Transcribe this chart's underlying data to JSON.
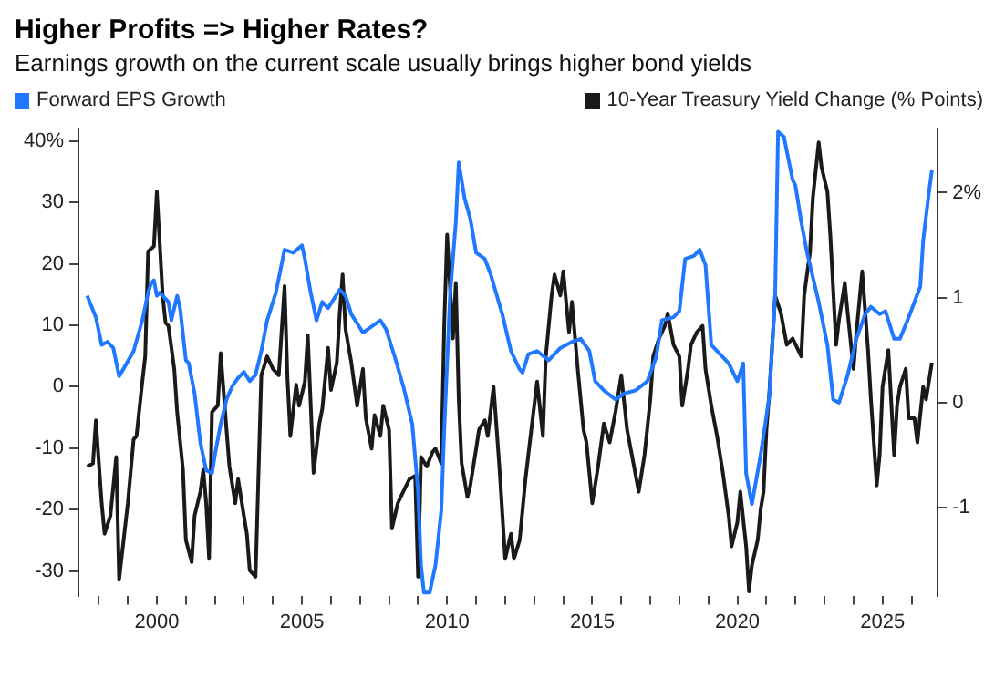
{
  "chart_data": {
    "type": "line",
    "title": "Higher Profits => Higher Rates?",
    "subtitle": "Earnings growth on the current scale usually brings higher bond yields",
    "legend": "top",
    "line_style": "solid",
    "marker": "none",
    "xlim": [
      1997.3,
      2026.9
    ],
    "xticks": [
      {
        "value": 1998,
        "label": null
      },
      {
        "value": 1999,
        "label": null
      },
      2000,
      {
        "value": 2001,
        "label": null
      },
      {
        "value": 2002,
        "label": null
      },
      {
        "value": 2003,
        "label": null
      },
      {
        "value": 2004,
        "label": null
      },
      2005,
      {
        "value": 2006,
        "label": null
      },
      {
        "value": 2007,
        "label": null
      },
      {
        "value": 2008,
        "label": null
      },
      {
        "value": 2009,
        "label": null
      },
      2010,
      {
        "value": 2011,
        "label": null
      },
      {
        "value": 2012,
        "label": null
      },
      {
        "value": 2013,
        "label": null
      },
      {
        "value": 2014,
        "label": null
      },
      2015,
      {
        "value": 2016,
        "label": null
      },
      {
        "value": 2017,
        "label": null
      },
      {
        "value": 2018,
        "label": null
      },
      {
        "value": 2019,
        "label": null
      },
      2020,
      {
        "value": 2021,
        "label": null
      },
      {
        "value": 2022,
        "label": null
      },
      {
        "value": 2023,
        "label": null
      },
      {
        "value": 2024,
        "label": null
      },
      2025,
      {
        "value": 2026,
        "label": null
      }
    ],
    "ylim": [
      -34,
      42
    ],
    "yticks": [
      -30,
      -20,
      -10,
      0,
      10,
      20,
      30,
      {
        "value": 40,
        "label": "40%"
      }
    ],
    "y2lim": [
      -1.84,
      2.61
    ],
    "y2ticks": [
      -1,
      0,
      1,
      {
        "value": 2,
        "label": "2%"
      }
    ],
    "series": [
      {
        "name": "Forward EPS Growth",
        "color": "#1f78ff",
        "x": [
          1997.6,
          1997.9,
          1998.1,
          1998.3,
          1998.5,
          1998.7,
          1998.9,
          1999.2,
          1999.5,
          1999.7,
          1999.8,
          1999.9,
          2000.0,
          2000.1,
          2000.4,
          2000.5,
          2000.7,
          2000.8,
          2001.0,
          2001.1,
          2001.3,
          2001.5,
          2001.7,
          2001.9,
          2002.0,
          2002.2,
          2002.4,
          2002.6,
          2002.8,
          2003.0,
          2003.2,
          2003.4,
          2003.6,
          2003.8,
          2004.1,
          2004.4,
          2004.7,
          2005.0,
          2005.1,
          2005.3,
          2005.5,
          2005.7,
          2005.9,
          2006.1,
          2006.3,
          2006.5,
          2006.7,
          2007.1,
          2007.4,
          2007.7,
          2007.9,
          2008.2,
          2008.5,
          2008.8,
          2009.0,
          2009.1,
          2009.2,
          2009.4,
          2009.6,
          2009.8,
          2009.9,
          2010.1,
          2010.3,
          2010.4,
          2010.6,
          2010.8,
          2011.0,
          2011.3,
          2011.5,
          2011.9,
          2012.2,
          2012.5,
          2012.6,
          2012.8,
          2013.1,
          2013.5,
          2013.9,
          2014.3,
          2014.6,
          2014.9,
          2015.1,
          2015.4,
          2015.8,
          2016.1,
          2016.5,
          2016.9,
          2017.2,
          2017.4,
          2017.8,
          2018.0,
          2018.2,
          2018.5,
          2018.7,
          2018.9,
          2019.1,
          2019.7,
          2020.0,
          2020.2,
          2020.3,
          2020.5,
          2020.8,
          2021.1,
          2021.3,
          2021.4,
          2021.6,
          2021.9,
          2022.0,
          2022.2,
          2022.4,
          2022.8,
          2023.1,
          2023.3,
          2023.5,
          2023.8,
          2024.1,
          2024.4,
          2024.6,
          2024.9,
          2025.1,
          2025.4,
          2025.6,
          2025.9,
          2026.3,
          2026.4,
          2026.6,
          2026.7
        ],
        "values": [
          14.8,
          11.3,
          6.8,
          7.3,
          6.3,
          1.7,
          3.3,
          5.8,
          10.8,
          15.3,
          16.8,
          17.3,
          14.8,
          15.3,
          13.8,
          10.8,
          14.8,
          12.8,
          4.3,
          3.8,
          -1.1,
          -9.1,
          -13.6,
          -14.1,
          -11.1,
          -6.1,
          -2.1,
          0.1,
          1.4,
          2.4,
          0.9,
          1.9,
          5.8,
          10.8,
          15.3,
          22.3,
          21.8,
          23.0,
          20.8,
          15.3,
          10.8,
          13.8,
          12.8,
          14.3,
          15.8,
          14.8,
          11.8,
          8.8,
          9.8,
          10.8,
          9.3,
          4.8,
          -0.1,
          -6.1,
          -17.1,
          -29.0,
          -33.5,
          -33.5,
          -29.0,
          -20.1,
          -7.1,
          14.8,
          26.8,
          36.5,
          30.7,
          27.3,
          21.8,
          20.8,
          18.3,
          11.8,
          5.8,
          2.8,
          2.3,
          5.3,
          5.8,
          4.3,
          6.3,
          7.3,
          7.8,
          5.8,
          0.9,
          -0.6,
          -2.1,
          -1.1,
          -0.6,
          0.9,
          4.8,
          10.8,
          11.3,
          12.3,
          20.8,
          21.3,
          22.3,
          19.8,
          6.8,
          3.8,
          0.9,
          3.8,
          -14.1,
          -19.1,
          -11.1,
          -1.6,
          14.8,
          41.5,
          40.7,
          33.7,
          32.7,
          26.8,
          21.8,
          13.8,
          6.8,
          -2.1,
          -2.6,
          1.9,
          7.8,
          11.8,
          13.0,
          11.8,
          12.3,
          7.8,
          7.8,
          11.3,
          16.3,
          23.8,
          31.7,
          35.2
        ]
      },
      {
        "name": "10-Year Treasury Yield Change (% Points)",
        "color": "#1a1a1a",
        "axis": "y2",
        "x": [
          1997.6,
          1997.8,
          1997.9,
          1998.1,
          1998.2,
          1998.4,
          1998.6,
          1998.7,
          1998.9,
          1999.0,
          1999.2,
          1999.3,
          1999.5,
          1999.6,
          1999.7,
          1999.9,
          2000.0,
          2000.2,
          2000.3,
          2000.4,
          2000.6,
          2000.7,
          2000.9,
          2001.0,
          2001.2,
          2001.3,
          2001.5,
          2001.6,
          2001.7,
          2001.8,
          2001.9,
          2002.1,
          2002.2,
          2002.4,
          2002.5,
          2002.7,
          2002.8,
          2003.0,
          2003.1,
          2003.2,
          2003.4,
          2003.6,
          2003.8,
          2004.0,
          2004.2,
          2004.4,
          2004.5,
          2004.6,
          2004.8,
          2004.9,
          2005.1,
          2005.2,
          2005.4,
          2005.6,
          2005.7,
          2005.9,
          2006.0,
          2006.2,
          2006.3,
          2006.4,
          2006.5,
          2006.7,
          2006.9,
          2007.1,
          2007.2,
          2007.4,
          2007.5,
          2007.7,
          2007.8,
          2008.0,
          2008.1,
          2008.3,
          2008.4,
          2008.7,
          2008.9,
          2009.0,
          2009.1,
          2009.3,
          2009.5,
          2009.6,
          2009.8,
          2009.9,
          2010.0,
          2010.2,
          2010.3,
          2010.4,
          2010.5,
          2010.7,
          2010.8,
          2011.0,
          2011.1,
          2011.3,
          2011.4,
          2011.6,
          2011.8,
          2012.0,
          2012.2,
          2012.3,
          2012.5,
          2012.7,
          2012.9,
          2013.1,
          2013.3,
          2013.4,
          2013.6,
          2013.7,
          2013.9,
          2014.0,
          2014.2,
          2014.3,
          2014.5,
          2014.7,
          2014.8,
          2015.0,
          2015.2,
          2015.4,
          2015.6,
          2015.8,
          2016.0,
          2016.2,
          2016.4,
          2016.6,
          2016.8,
          2017.0,
          2017.1,
          2017.3,
          2017.5,
          2017.6,
          2017.8,
          2018.0,
          2018.1,
          2018.3,
          2018.4,
          2018.6,
          2018.8,
          2018.9,
          2019.1,
          2019.3,
          2019.5,
          2019.7,
          2019.8,
          2020.0,
          2020.1,
          2020.3,
          2020.4,
          2020.5,
          2020.7,
          2020.8,
          2020.9,
          2021.0,
          2021.1,
          2021.3,
          2021.5,
          2021.7,
          2021.9,
          2022.2,
          2022.3,
          2022.5,
          2022.6,
          2022.8,
          2022.9,
          2023.1,
          2023.2,
          2023.4,
          2023.5,
          2023.7,
          2023.8,
          2024.0,
          2024.1,
          2024.3,
          2024.5,
          2024.6,
          2024.8,
          2024.9,
          2025.0,
          2025.2,
          2025.4,
          2025.5,
          2025.6,
          2025.8,
          2025.9,
          2026.1,
          2026.2,
          2026.4,
          2026.5,
          2026.7
        ],
        "values": [
          -0.61,
          -0.58,
          -0.17,
          -0.96,
          -1.25,
          -1.08,
          -0.52,
          -1.69,
          -1.2,
          -0.96,
          -0.35,
          -0.32,
          0.2,
          0.44,
          1.44,
          1.49,
          2.01,
          1.02,
          0.76,
          0.73,
          0.32,
          -0.09,
          -0.64,
          -1.31,
          -1.52,
          -1.08,
          -0.85,
          -0.64,
          -0.96,
          -1.49,
          -0.09,
          -0.03,
          0.47,
          -0.26,
          -0.61,
          -0.96,
          -0.73,
          -1.08,
          -1.25,
          -1.6,
          -1.66,
          0.26,
          0.44,
          0.32,
          0.26,
          1.11,
          0.23,
          -0.32,
          0.17,
          -0.03,
          0.2,
          0.64,
          -0.67,
          -0.2,
          -0.06,
          0.52,
          0.12,
          0.38,
          0.85,
          1.22,
          0.7,
          0.38,
          -0.03,
          0.32,
          -0.15,
          -0.44,
          -0.12,
          -0.32,
          -0.03,
          -0.26,
          -1.2,
          -0.96,
          -0.9,
          -0.73,
          -0.7,
          -1.66,
          -0.52,
          -0.61,
          -0.47,
          -0.44,
          -0.58,
          0.73,
          1.6,
          0.61,
          1.14,
          0.03,
          -0.58,
          -0.9,
          -0.79,
          -0.44,
          -0.26,
          -0.17,
          -0.32,
          0.15,
          -0.61,
          -1.49,
          -1.25,
          -1.49,
          -1.31,
          -0.73,
          -0.26,
          0.2,
          -0.32,
          0.44,
          1.02,
          1.22,
          1.02,
          1.25,
          0.67,
          0.96,
          0.32,
          -0.26,
          -0.38,
          -0.96,
          -0.61,
          -0.2,
          -0.38,
          -0.09,
          0.26,
          -0.26,
          -0.55,
          -0.85,
          -0.5,
          0.03,
          0.44,
          0.61,
          0.73,
          0.85,
          0.55,
          0.44,
          -0.03,
          0.32,
          0.55,
          0.67,
          0.73,
          0.32,
          -0.03,
          -0.32,
          -0.67,
          -1.08,
          -1.37,
          -1.14,
          -0.85,
          -1.37,
          -1.8,
          -1.55,
          -1.31,
          -1.02,
          -0.85,
          -0.26,
          0.09,
          1.02,
          0.85,
          0.55,
          0.61,
          0.44,
          1.02,
          1.43,
          1.95,
          2.48,
          2.24,
          2.01,
          1.6,
          0.55,
          0.79,
          1.14,
          0.85,
          0.32,
          0.67,
          1.25,
          0.5,
          0.03,
          -0.79,
          -0.5,
          0.15,
          0.5,
          -0.5,
          -0.03,
          0.15,
          0.32,
          -0.15,
          -0.15,
          -0.38,
          0.15,
          0.03,
          0.38
        ]
      }
    ]
  }
}
